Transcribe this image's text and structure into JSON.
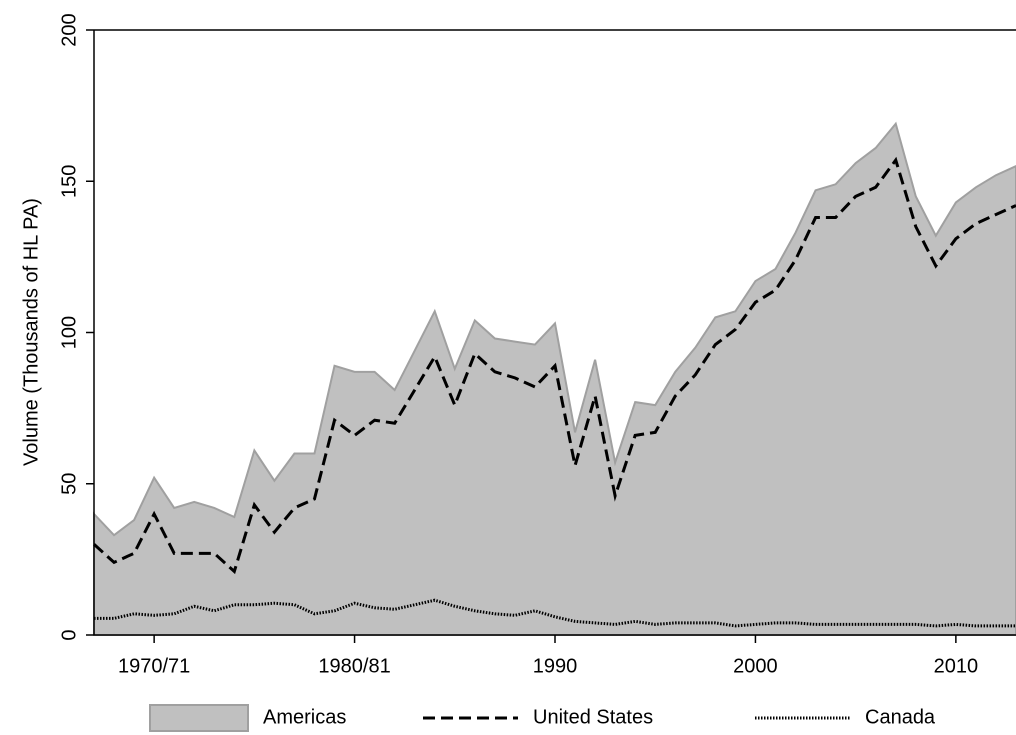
{
  "chart_data": {
    "type": "area",
    "y_label": "Volume (Thousands of HL PA)",
    "x": [
      1967,
      1968,
      1969,
      1970,
      1971,
      1972,
      1973,
      1974,
      1975,
      1976,
      1977,
      1978,
      1979,
      1980,
      1981,
      1982,
      1983,
      1984,
      1985,
      1986,
      1987,
      1988,
      1989,
      1990,
      1991,
      1992,
      1993,
      1994,
      1995,
      1996,
      1997,
      1998,
      1999,
      2000,
      2001,
      2002,
      2003,
      2004,
      2005,
      2006,
      2007,
      2008,
      2009,
      2010,
      2011,
      2012,
      2013
    ],
    "series": [
      {
        "name": "Americas",
        "kind": "area",
        "color": "#c0c0c0",
        "values": [
          40,
          33,
          38,
          52,
          42,
          44,
          42,
          39,
          61,
          51,
          60,
          60,
          89,
          87,
          87,
          81,
          94,
          107,
          88,
          104,
          98,
          97,
          96,
          103,
          67,
          91,
          57,
          77,
          76,
          87,
          95,
          105,
          107,
          117,
          121,
          133,
          147,
          149,
          156,
          161,
          169,
          145,
          132,
          143,
          148,
          152,
          155
        ]
      },
      {
        "name": "United States",
        "kind": "dashed",
        "color": "#000000",
        "values": [
          30,
          24,
          27,
          40,
          27,
          27,
          27,
          21,
          43,
          34,
          42,
          45,
          71,
          66,
          71,
          70,
          81,
          92,
          76,
          93,
          87,
          85,
          82,
          89,
          56,
          79,
          46,
          66,
          67,
          79,
          86,
          96,
          101,
          110,
          114,
          124,
          138,
          138,
          145,
          148,
          157,
          135,
          122,
          131,
          136,
          139,
          142
        ]
      },
      {
        "name": "Canada",
        "kind": "dotted",
        "color": "#000000",
        "values": [
          5.5,
          5.5,
          7,
          6.5,
          7,
          9.5,
          8,
          10,
          10,
          10.5,
          10,
          7,
          8,
          10.5,
          9,
          8.5,
          10,
          11.5,
          9.5,
          8,
          7,
          6.5,
          8,
          6,
          4.5,
          4,
          3.5,
          4.5,
          3.5,
          4,
          4,
          4,
          3,
          3.5,
          4,
          4,
          3.5,
          3.5,
          3.5,
          3.5,
          3.5,
          3.5,
          3,
          3.5,
          3,
          3,
          3
        ]
      }
    ],
    "xlim": [
      1967,
      2013
    ],
    "xticks": [
      {
        "value": 1970,
        "label": "1970/71"
      },
      {
        "value": 1980,
        "label": "1980/81"
      },
      1990,
      2000,
      2010
    ],
    "ylim": [
      0,
      200
    ],
    "yticks": [
      0,
      50,
      100,
      150,
      200
    ],
    "legend": "bottom"
  }
}
